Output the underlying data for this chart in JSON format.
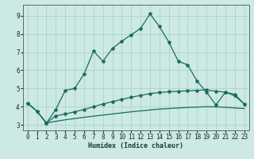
{
  "xlabel": "Humidex (Indice chaleur)",
  "bg_color": "#cce9e3",
  "line_color": "#1a6b60",
  "grid_color": "#aad4cc",
  "x": [
    0,
    1,
    2,
    3,
    4,
    5,
    6,
    7,
    8,
    9,
    10,
    11,
    12,
    13,
    14,
    15,
    16,
    17,
    18,
    19,
    20,
    21,
    22,
    23
  ],
  "line1": [
    4.2,
    3.75,
    3.1,
    3.85,
    4.9,
    5.0,
    5.8,
    7.05,
    6.5,
    7.2,
    7.6,
    7.95,
    8.3,
    9.1,
    8.4,
    7.55,
    6.5,
    6.3,
    5.4,
    4.8,
    4.1,
    4.8,
    4.6,
    4.15
  ],
  "line2": [
    4.2,
    3.75,
    3.1,
    3.5,
    3.6,
    3.72,
    3.85,
    4.0,
    4.15,
    4.28,
    4.4,
    4.52,
    4.62,
    4.72,
    4.78,
    4.82,
    4.85,
    4.87,
    4.9,
    4.92,
    4.85,
    4.8,
    4.68,
    4.15
  ],
  "line3": [
    4.2,
    3.75,
    3.1,
    3.2,
    3.28,
    3.35,
    3.42,
    3.48,
    3.54,
    3.6,
    3.66,
    3.72,
    3.77,
    3.82,
    3.87,
    3.9,
    3.93,
    3.96,
    3.98,
    4.0,
    3.99,
    3.97,
    3.93,
    3.9
  ],
  "yticks": [
    3,
    4,
    5,
    6,
    7,
    8,
    9
  ],
  "xticks": [
    0,
    1,
    2,
    3,
    4,
    5,
    6,
    7,
    8,
    9,
    10,
    11,
    12,
    13,
    14,
    15,
    16,
    17,
    18,
    19,
    20,
    21,
    22,
    23
  ],
  "xlim": [
    -0.5,
    23.5
  ],
  "ylim": [
    2.7,
    9.6
  ]
}
